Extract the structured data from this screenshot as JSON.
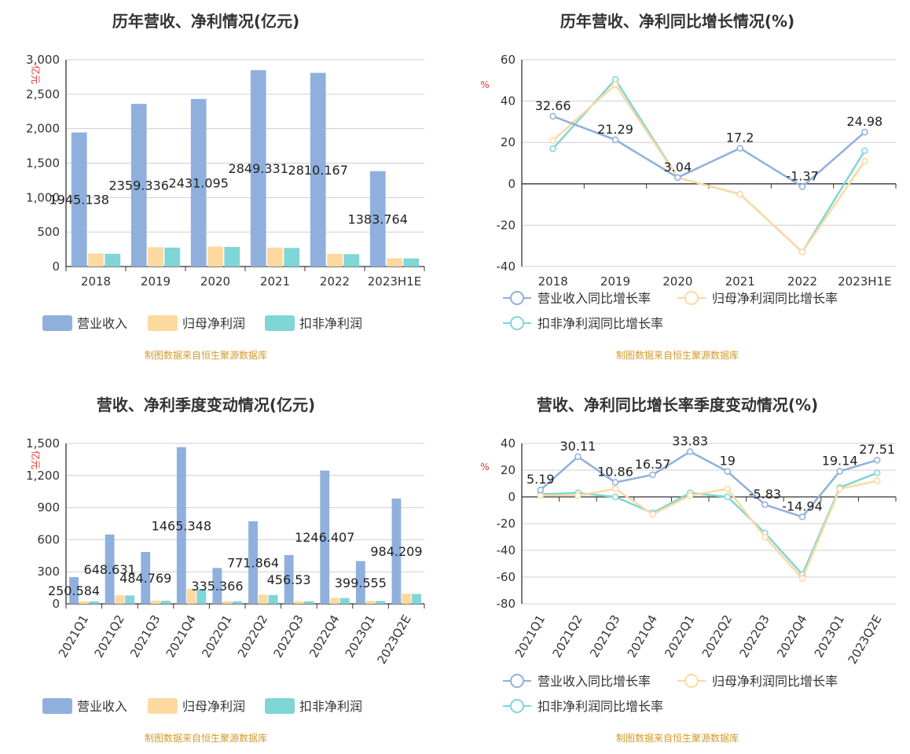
{
  "colors": {
    "revenue": "#8fb0dd",
    "parent_profit": "#fdd9a0",
    "deducted_profit": "#7fd6d6",
    "axis": "#333333",
    "grid": "#cfcfcf",
    "unit": "#e8302f",
    "source": "#d49a2a"
  },
  "chart_data": [
    {
      "id": "c1",
      "type": "bar",
      "title": "历年营收、净利情况(亿元)",
      "ylabel": "亿元",
      "categories": [
        "2018",
        "2019",
        "2020",
        "2021",
        "2022",
        "2023H1E"
      ],
      "ylim": [
        0,
        3000
      ],
      "yticks": [
        "0",
        "500",
        "1,000",
        "1,500",
        "2,000",
        "2,500",
        "3,000"
      ],
      "yticks_values": [
        0,
        500,
        1000,
        1500,
        2000,
        2500,
        3000
      ],
      "series": [
        {
          "name": "营业收入",
          "values": [
            1945.138,
            2359.336,
            2431.095,
            2849.331,
            2810.167,
            1383.764
          ]
        },
        {
          "name": "归母净利润",
          "values": [
            190,
            280,
            290,
            275,
            185,
            120
          ]
        },
        {
          "name": "扣非净利润",
          "values": [
            185,
            275,
            285,
            270,
            180,
            118
          ]
        }
      ],
      "labels": [
        "1945.138",
        "2359.336",
        "2431.095",
        "2849.331",
        "2810.167",
        "1383.764"
      ],
      "legend": [
        "营业收入",
        "归母净利润",
        "扣非净利润"
      ],
      "grid": true,
      "legend_position": "bottom",
      "source": "制图数据来自恒生聚源数据库"
    },
    {
      "id": "c2",
      "type": "line",
      "title": "历年营收、净利同比增长情况(%)",
      "ylabel": "%",
      "categories": [
        "2018",
        "2019",
        "2020",
        "2021",
        "2022",
        "2023H1E"
      ],
      "ylim": [
        -40,
        60
      ],
      "yticks": [
        "-40",
        "-20",
        "0",
        "20",
        "40",
        "60"
      ],
      "yticks_values": [
        -40,
        -20,
        0,
        20,
        40,
        60
      ],
      "series": [
        {
          "name": "营业收入同比增长率",
          "values": [
            32.66,
            21.29,
            3.04,
            17.2,
            -1.37,
            24.98
          ]
        },
        {
          "name": "归母净利润同比增长率",
          "values": [
            21,
            48,
            3,
            -5,
            -33,
            11
          ]
        },
        {
          "name": "扣非净利润同比增长率",
          "values": [
            17,
            50.5,
            3,
            -5,
            -33,
            16
          ]
        }
      ],
      "labels": [
        "32.66",
        "21.29",
        "3.04",
        "17.2",
        "-1.37",
        "24.98"
      ],
      "legend": [
        "营业收入同比增长率",
        "归母净利润同比增长率",
        "扣非净利润同比增长率"
      ],
      "grid": true,
      "legend_position": "bottom",
      "source": "制图数据来自恒生聚源数据库"
    },
    {
      "id": "c3",
      "type": "bar",
      "title": "营收、净利季度变动情况(亿元)",
      "ylabel": "亿元",
      "categories": [
        "2021Q1",
        "2021Q2",
        "2021Q3",
        "2021Q4",
        "2022Q1",
        "2022Q2",
        "2022Q3",
        "2022Q4",
        "2023Q1",
        "2023Q2E"
      ],
      "ylim": [
        0,
        1500
      ],
      "yticks": [
        "0",
        "300",
        "600",
        "900",
        "1,200",
        "1,500"
      ],
      "yticks_values": [
        0,
        300,
        600,
        900,
        1200,
        1500
      ],
      "series": [
        {
          "name": "营业收入",
          "values": [
            250.584,
            648.631,
            484.769,
            1465.348,
            335.366,
            771.864,
            456.53,
            1246.407,
            399.555,
            984.209
          ]
        },
        {
          "name": "归母净利润",
          "values": [
            25,
            80,
            30,
            140,
            25,
            85,
            25,
            55,
            28,
            95
          ]
        },
        {
          "name": "扣非净利润",
          "values": [
            24,
            78,
            29,
            138,
            24,
            83,
            24,
            54,
            27,
            93
          ]
        }
      ],
      "labels": [
        "250.584",
        "648.631",
        "484.769",
        "1465.348",
        "335.366",
        "771.864",
        "456.53",
        "1246.407",
        "399.555",
        "984.209"
      ],
      "legend": [
        "营业收入",
        "归母净利润",
        "扣非净利润"
      ],
      "grid": true,
      "legend_position": "bottom",
      "source": "制图数据来自恒生聚源数据库"
    },
    {
      "id": "c4",
      "type": "line",
      "title": "营收、净利同比增长率季度变动情况(%)",
      "ylabel": "%",
      "categories": [
        "2021Q1",
        "2021Q2",
        "2021Q3",
        "2021Q4",
        "2022Q1",
        "2022Q2",
        "2022Q3",
        "2022Q4",
        "2023Q1",
        "2023Q2E"
      ],
      "ylim": [
        -80,
        40
      ],
      "yticks": [
        "-80",
        "-60",
        "-40",
        "-20",
        "0",
        "20",
        "40"
      ],
      "yticks_values": [
        -80,
        -60,
        -40,
        -20,
        0,
        20,
        40
      ],
      "series": [
        {
          "name": "营业收入同比增长率",
          "values": [
            5.19,
            30.11,
            10.86,
            16.57,
            33.83,
            19,
            -5.83,
            -14.94,
            19.14,
            27.51
          ]
        },
        {
          "name": "归母净利润同比增长率",
          "values": [
            1,
            1,
            6,
            -13,
            1,
            6,
            -30,
            -61,
            6,
            12
          ]
        },
        {
          "name": "扣非净利润同比增长率",
          "values": [
            2,
            3,
            0,
            -12,
            3,
            0,
            -27,
            -58,
            7,
            18
          ]
        }
      ],
      "labels": [
        "5.19",
        "30.11",
        "10.86",
        "16.57",
        "33.83",
        "19",
        "-5.83",
        "-14.94",
        "19.14",
        "27.51"
      ],
      "legend": [
        "营业收入同比增长率",
        "归母净利润同比增长率",
        "扣非净利润同比增长率"
      ],
      "grid": true,
      "legend_position": "bottom",
      "source": "制图数据来自恒生聚源数据库"
    }
  ]
}
